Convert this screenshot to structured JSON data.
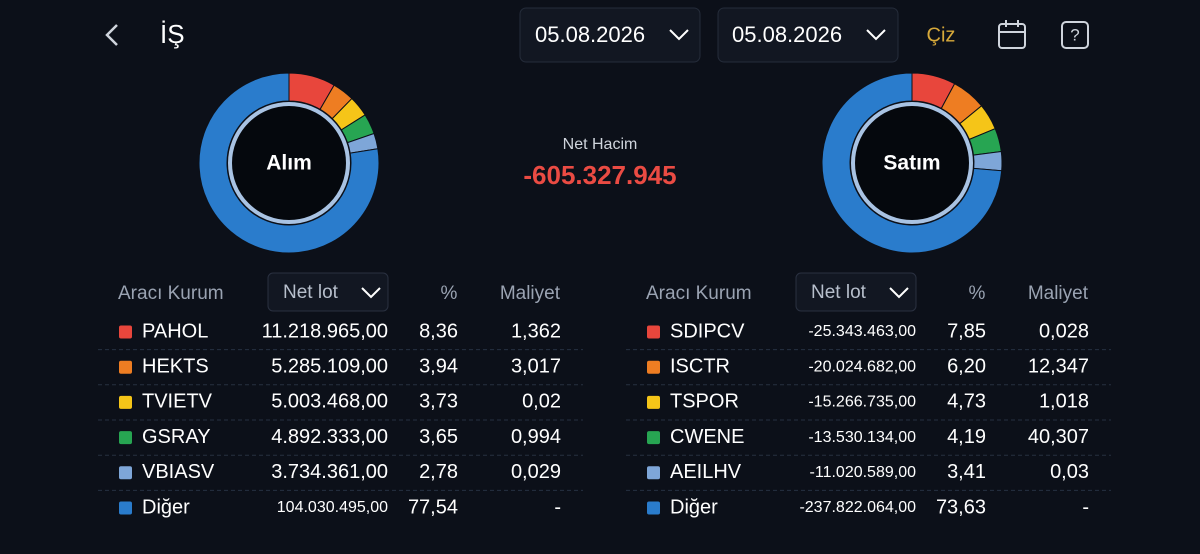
{
  "header": {
    "title": "İŞ",
    "start_date": "05.08.2026",
    "end_date": "05.08.2026",
    "draw_button": "Çiz"
  },
  "summary": {
    "label": "Net Hacim",
    "value": "-605.327.945"
  },
  "buy": {
    "title": "Alım",
    "columns": [
      "Aracı Kurum",
      "Net lot",
      "%",
      "Maliyet"
    ],
    "rows": [
      {
        "name": "PAHOL",
        "color": "#e8463c",
        "net_lot": "11.218.965,00",
        "percent": "8,36",
        "cost": "1,362"
      },
      {
        "name": "HEKTS",
        "color": "#ee7d22",
        "net_lot": "5.285.109,00",
        "percent": "3,94",
        "cost": "3,017"
      },
      {
        "name": "TVIETV",
        "color": "#f5c518",
        "net_lot": "5.003.468,00",
        "percent": "3,73",
        "cost": "0,02"
      },
      {
        "name": "GSRAY",
        "color": "#27a552",
        "net_lot": "4.892.333,00",
        "percent": "3,65",
        "cost": "0,994"
      },
      {
        "name": "VBIASV",
        "color": "#7ea6d8",
        "net_lot": "3.734.361,00",
        "percent": "2,78",
        "cost": "0,029"
      },
      {
        "name": "Diğer",
        "color": "#2a7ccc",
        "net_lot": "104.030.495,00",
        "percent": "77,54",
        "cost": "-"
      }
    ]
  },
  "sell": {
    "title": "Satım",
    "columns": [
      "Aracı Kurum",
      "Net lot",
      "%",
      "Maliyet"
    ],
    "rows": [
      {
        "name": "SDIPCV",
        "color": "#e8463c",
        "net_lot": "-25.343.463,00",
        "percent": "7,85",
        "cost": "0,028"
      },
      {
        "name": "ISCTR",
        "color": "#ee7d22",
        "net_lot": "-20.024.682,00",
        "percent": "6,20",
        "cost": "12,347"
      },
      {
        "name": "TSPOR",
        "color": "#f5c518",
        "net_lot": "-15.266.735,00",
        "percent": "4,73",
        "cost": "1,018"
      },
      {
        "name": "CWENE",
        "color": "#27a552",
        "net_lot": "-13.530.134,00",
        "percent": "4,19",
        "cost": "40,307"
      },
      {
        "name": "AEILHV",
        "color": "#7ea6d8",
        "net_lot": "-11.020.589,00",
        "percent": "3,41",
        "cost": "0,03"
      },
      {
        "name": "Diğer",
        "color": "#2a7ccc",
        "net_lot": "-237.822.064,00",
        "percent": "73,63",
        "cost": "-"
      }
    ]
  }
}
